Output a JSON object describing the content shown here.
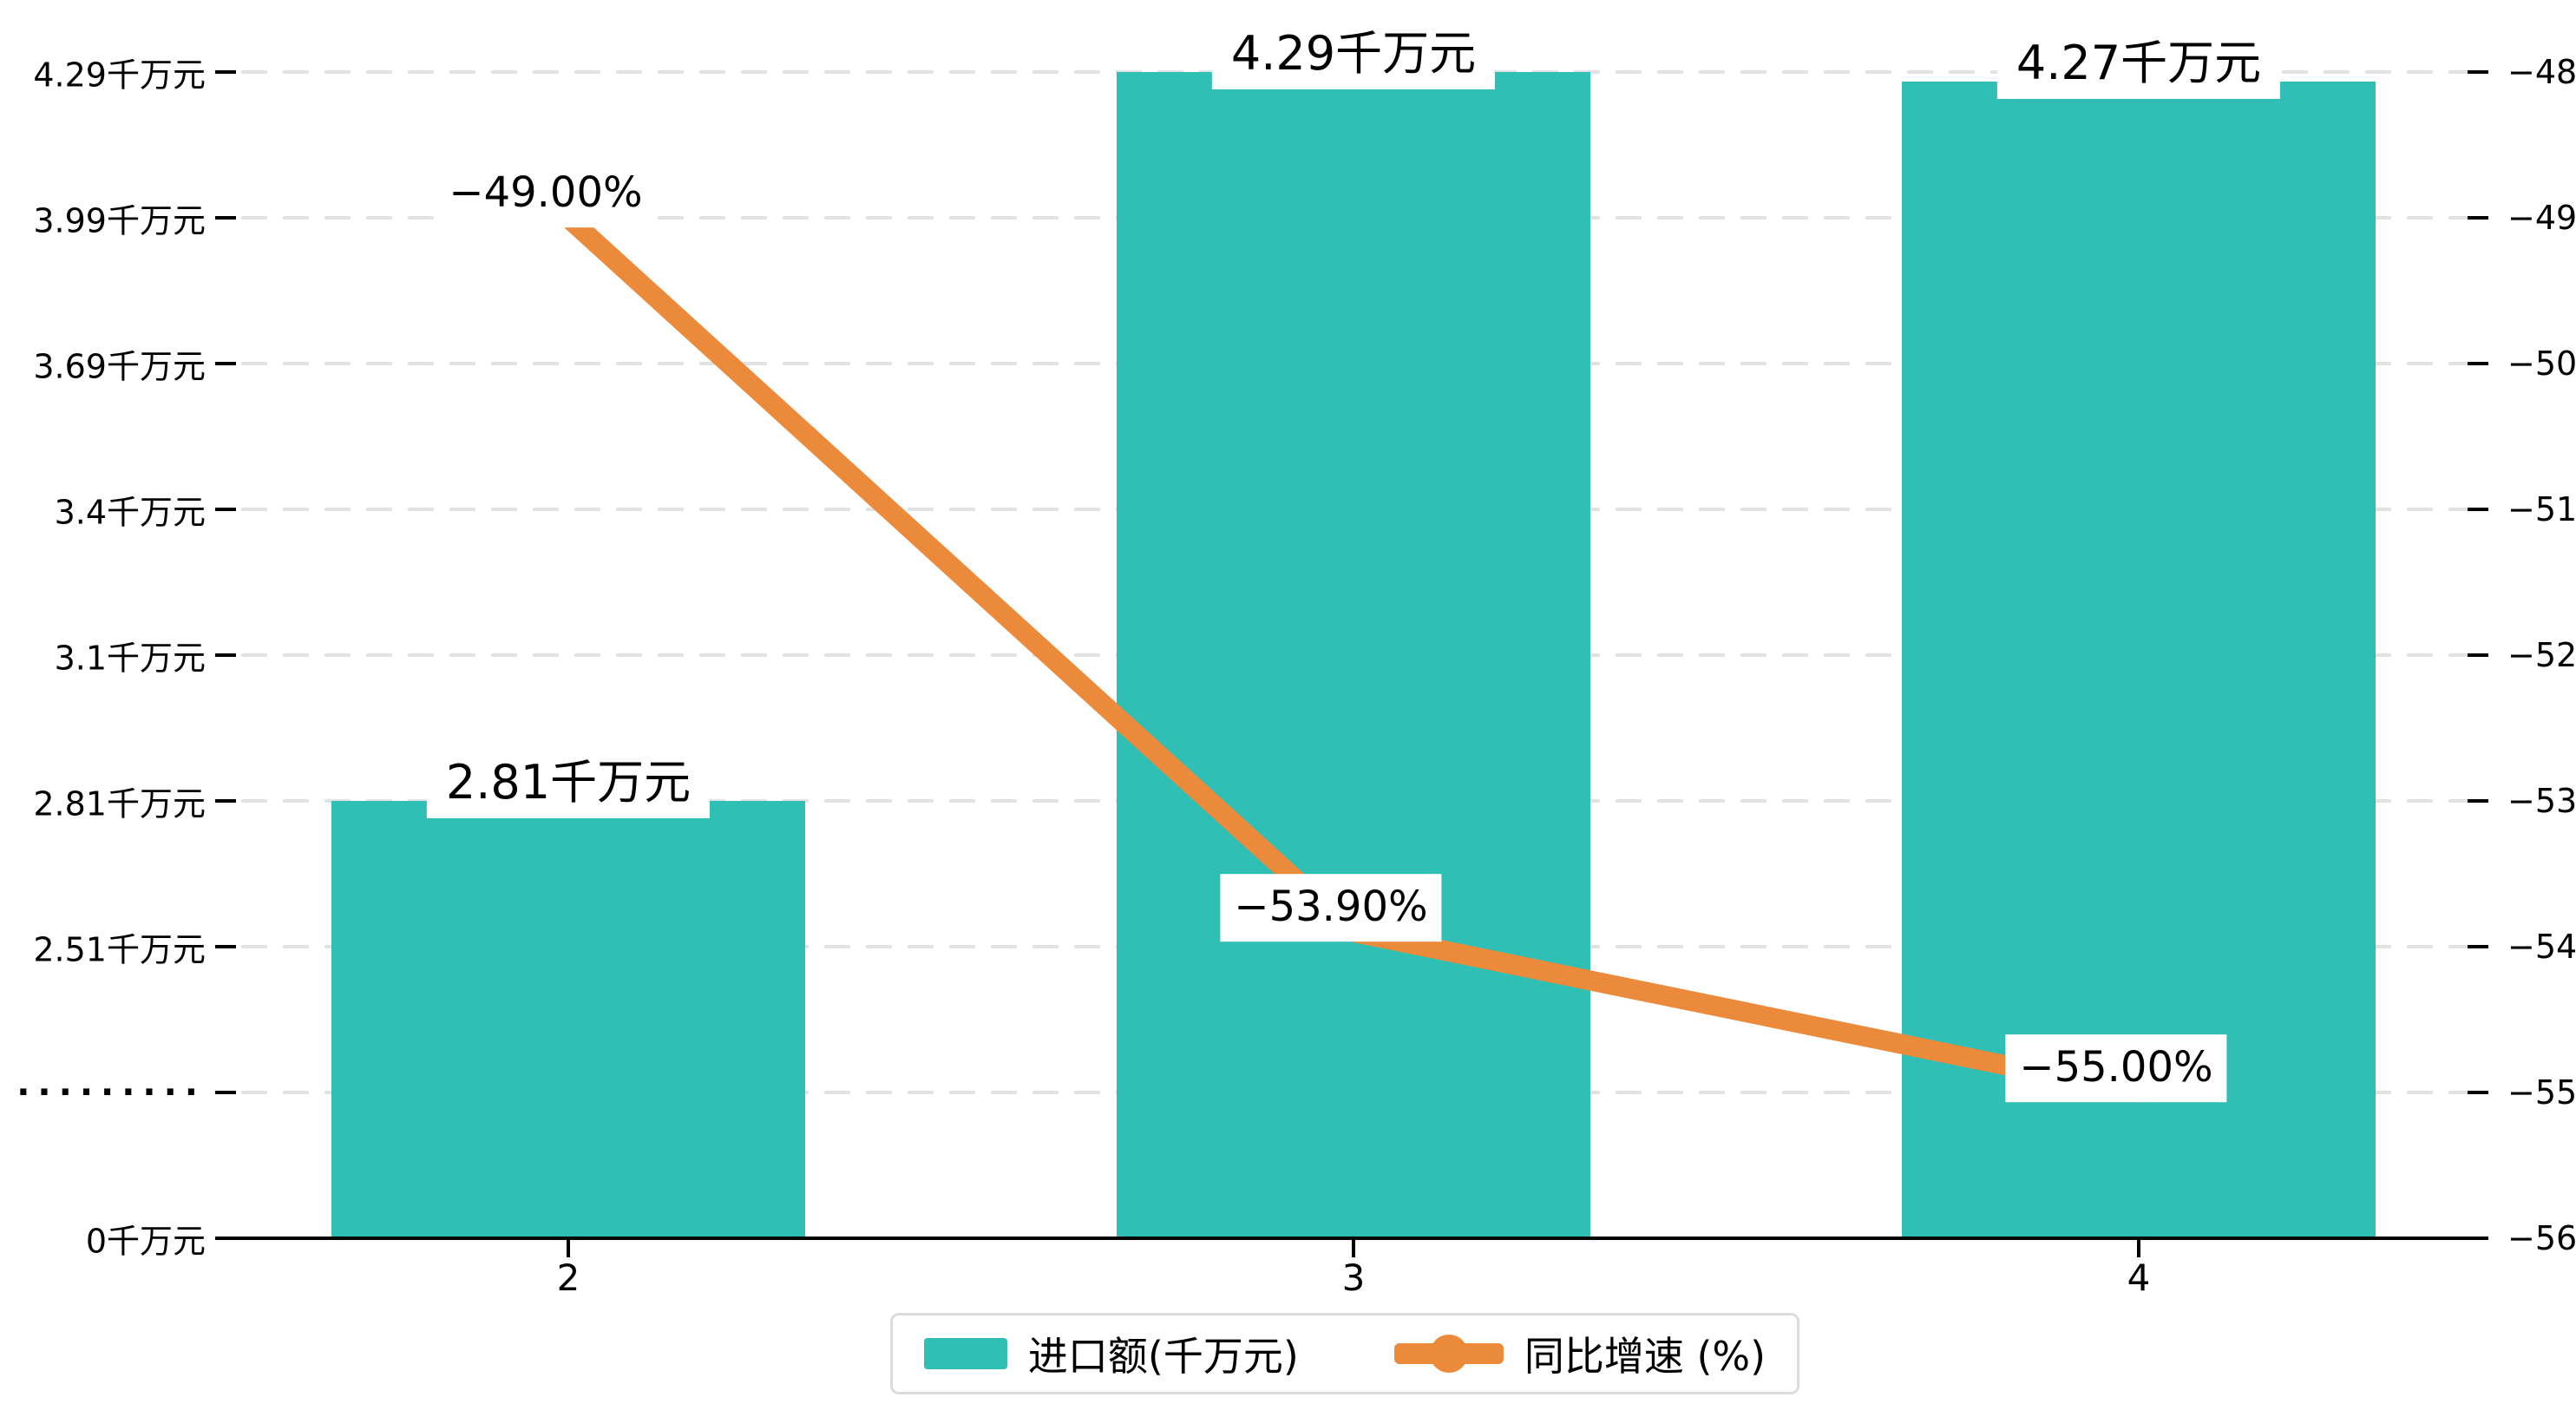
{
  "chart_data": {
    "type": "bar",
    "subtype": "bar-line-combo",
    "title": "",
    "categories": [
      "2",
      "3",
      "4"
    ],
    "series": [
      {
        "name": "进口额(千万元)",
        "type": "bar",
        "axis": "left",
        "color": "#30bfb4",
        "values": [
          2.81,
          4.29,
          4.27
        ],
        "data_labels": [
          "2.81千万元",
          "4.29千万元",
          "4.27千万元"
        ]
      },
      {
        "name": "同比增速 (%)",
        "type": "line",
        "axis": "right",
        "color": "#ec8a3c",
        "values": [
          -49.0,
          -53.9,
          -55.0
        ],
        "data_labels": [
          "−49.00%",
          "−53.90%",
          "−55.00%"
        ]
      }
    ],
    "left_axis": {
      "tick_labels": [
        "4.29千万元",
        "3.99千万元",
        "3.69千万元",
        "3.4千万元",
        "3.1千万元",
        "2.81千万元",
        "2.51千万元",
        "·········",
        "0千万元"
      ],
      "tick_values": [
        4.29,
        3.99,
        3.69,
        3.4,
        3.1,
        2.81,
        2.51,
        null,
        0
      ],
      "note": "axis break between 2.51 and 0 shown as dotted tick label"
    },
    "right_axis": {
      "tick_labels": [
        "−48",
        "−49",
        "−50",
        "−51",
        "−52",
        "−53",
        "−54",
        "−55",
        "−56"
      ],
      "max": -48,
      "min": -56
    },
    "x_axis": {
      "tick_labels": [
        "2",
        "3",
        "4"
      ]
    },
    "legend": {
      "position": "bottom-center",
      "items": [
        {
          "label": "进口额(千万元)",
          "marker": "rect",
          "color": "#30bfb4"
        },
        {
          "label": "同比增速 (%)",
          "marker": "line-dot",
          "color": "#ec8a3c"
        }
      ]
    },
    "grid": {
      "horizontal_dashed_lines": true,
      "gridline_color": "#e2e2e2",
      "axis_line_color": "#000000",
      "background": "#ffffff"
    }
  }
}
